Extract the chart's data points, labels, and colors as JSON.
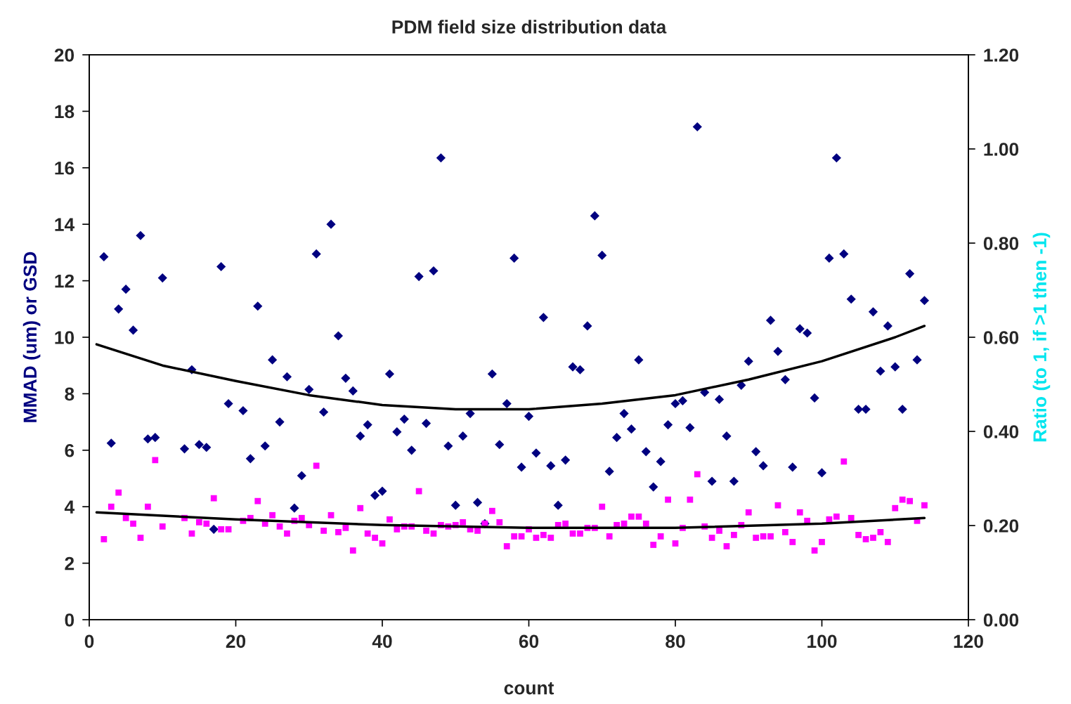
{
  "chart_data": {
    "type": "scatter",
    "title": "PDM field size distribution data",
    "xlabel": "count",
    "ylabel": "MMAD (um) or GSD",
    "y2label": "Ratio (to 1, if >1 then -1)",
    "xlim": [
      0,
      120
    ],
    "xticks": [
      0,
      20,
      40,
      60,
      80,
      100,
      120
    ],
    "ylim": [
      0,
      20
    ],
    "yticks": [
      0,
      2,
      4,
      6,
      8,
      10,
      12,
      14,
      16,
      18,
      20
    ],
    "y2lim": [
      0,
      1.2
    ],
    "y2ticks": [
      {
        "value": 0,
        "label": "0.00"
      },
      {
        "value": 0.2,
        "label": "0.20"
      },
      {
        "value": 0.4,
        "label": "0.40"
      },
      {
        "value": 0.6,
        "label": "0.60"
      },
      {
        "value": 0.8,
        "label": "0.80"
      },
      {
        "value": 1.0,
        "label": "1.00"
      },
      {
        "value": 1.2,
        "label": "1.20"
      }
    ],
    "grid": false,
    "legend": false,
    "series": [
      {
        "marker": "diamond",
        "color": "#000080",
        "x": [
          2,
          3,
          4,
          5,
          6,
          7,
          8,
          9,
          10,
          13,
          14,
          15,
          16,
          17,
          18,
          19,
          21,
          22,
          23,
          24,
          25,
          26,
          27,
          28,
          29,
          30,
          31,
          32,
          33,
          34,
          35,
          36,
          37,
          38,
          39,
          40,
          41,
          42,
          43,
          44,
          45,
          46,
          47,
          48,
          49,
          50,
          51,
          52,
          53,
          54,
          55,
          56,
          57,
          58,
          59,
          60,
          61,
          62,
          63,
          64,
          65,
          66,
          67,
          68,
          69,
          70,
          71,
          72,
          73,
          74,
          75,
          76,
          77,
          78,
          79,
          80,
          81,
          82,
          83,
          84,
          85,
          86,
          87,
          88,
          89,
          90,
          91,
          92,
          93,
          94,
          95,
          96,
          97,
          98,
          99,
          100,
          101,
          102,
          103,
          104,
          105,
          106,
          107,
          108,
          109,
          110,
          111,
          112,
          113,
          114
        ],
        "values": [
          12.85,
          6.25,
          11.0,
          11.7,
          10.25,
          13.6,
          6.4,
          6.45,
          12.1,
          6.05,
          8.85,
          6.2,
          6.1,
          3.2,
          12.5,
          7.65,
          7.4,
          5.7,
          11.1,
          6.15,
          9.2,
          7.0,
          8.6,
          3.95,
          5.1,
          8.15,
          12.95,
          7.35,
          14.0,
          10.05,
          8.55,
          8.1,
          6.5,
          6.9,
          4.4,
          4.55,
          8.7,
          6.65,
          7.1,
          6.0,
          12.15,
          6.95,
          12.35,
          16.35,
          6.15,
          4.05,
          6.5,
          7.3,
          4.15,
          3.4,
          8.7,
          6.2,
          7.65,
          12.8,
          5.4,
          7.2,
          5.9,
          10.7,
          5.45,
          4.05,
          5.65,
          8.95,
          8.85,
          10.4,
          14.3,
          12.9,
          5.25,
          6.45,
          7.3,
          6.75,
          9.2,
          5.95,
          4.7,
          5.6,
          6.9,
          7.65,
          7.75,
          6.8,
          17.45,
          8.05,
          4.9,
          7.8,
          6.5,
          4.9,
          8.3,
          9.15,
          5.95,
          5.45,
          10.6,
          9.5,
          8.5,
          5.4,
          10.3,
          10.15,
          7.85,
          5.2,
          12.8,
          16.35,
          12.95,
          11.35,
          7.45,
          7.45,
          10.9,
          8.8,
          10.4,
          8.95,
          7.45,
          12.25,
          9.2,
          11.3
        ]
      },
      {
        "marker": "square",
        "color": "#ff00ff",
        "x": [
          2,
          3,
          4,
          5,
          6,
          7,
          8,
          9,
          10,
          13,
          14,
          15,
          16,
          17,
          18,
          19,
          21,
          22,
          23,
          24,
          25,
          26,
          27,
          28,
          29,
          30,
          31,
          32,
          33,
          34,
          35,
          36,
          37,
          38,
          39,
          40,
          41,
          42,
          43,
          44,
          45,
          46,
          47,
          48,
          49,
          50,
          51,
          52,
          53,
          54,
          55,
          56,
          57,
          58,
          59,
          60,
          61,
          62,
          63,
          64,
          65,
          66,
          67,
          68,
          69,
          70,
          71,
          72,
          73,
          74,
          75,
          76,
          77,
          78,
          79,
          80,
          81,
          82,
          83,
          84,
          85,
          86,
          87,
          88,
          89,
          90,
          91,
          92,
          93,
          94,
          95,
          96,
          97,
          98,
          99,
          100,
          101,
          102,
          103,
          104,
          105,
          106,
          107,
          108,
          109,
          110,
          111,
          112,
          113,
          114
        ],
        "values": [
          2.85,
          4.0,
          4.5,
          3.6,
          3.4,
          2.9,
          4.0,
          5.65,
          3.3,
          3.6,
          3.05,
          3.45,
          3.4,
          4.3,
          3.2,
          3.2,
          3.5,
          3.6,
          4.2,
          3.4,
          3.7,
          3.3,
          3.05,
          3.5,
          3.6,
          3.35,
          5.45,
          3.15,
          3.7,
          3.1,
          3.25,
          2.45,
          3.95,
          3.05,
          2.9,
          2.7,
          3.55,
          3.2,
          3.3,
          3.3,
          4.55,
          3.15,
          3.05,
          3.35,
          3.3,
          3.35,
          3.45,
          3.2,
          3.15,
          3.4,
          3.85,
          3.45,
          2.6,
          2.95,
          2.95,
          3.2,
          2.9,
          3.0,
          2.9,
          3.35,
          3.4,
          3.05,
          3.05,
          3.25,
          3.25,
          4.0,
          2.95,
          3.35,
          3.4,
          3.65,
          3.65,
          3.4,
          2.65,
          2.95,
          4.25,
          2.7,
          3.25,
          4.25,
          5.15,
          3.3,
          2.9,
          3.15,
          2.6,
          3.0,
          3.35,
          3.8,
          2.9,
          2.95,
          2.95,
          4.05,
          3.1,
          2.75,
          3.8,
          3.5,
          2.45,
          2.75,
          3.55,
          3.65,
          5.6,
          3.6,
          3.0,
          2.85,
          2.9,
          3.1,
          2.75,
          3.95,
          4.25,
          4.2,
          3.5,
          4.05
        ]
      },
      {
        "type": "line",
        "marker": "none",
        "line_style": "solid",
        "color": "#000000",
        "x": [
          1,
          10,
          20,
          30,
          40,
          50,
          60,
          70,
          80,
          90,
          100,
          110,
          114
        ],
        "values": [
          9.75,
          9.0,
          8.45,
          7.95,
          7.6,
          7.45,
          7.45,
          7.65,
          7.95,
          8.5,
          9.15,
          10.0,
          10.4
        ]
      },
      {
        "type": "line",
        "marker": "none",
        "line_style": "solid",
        "color": "#000000",
        "x": [
          1,
          20,
          40,
          60,
          80,
          100,
          114
        ],
        "values": [
          3.8,
          3.55,
          3.35,
          3.25,
          3.25,
          3.4,
          3.6
        ]
      }
    ]
  }
}
